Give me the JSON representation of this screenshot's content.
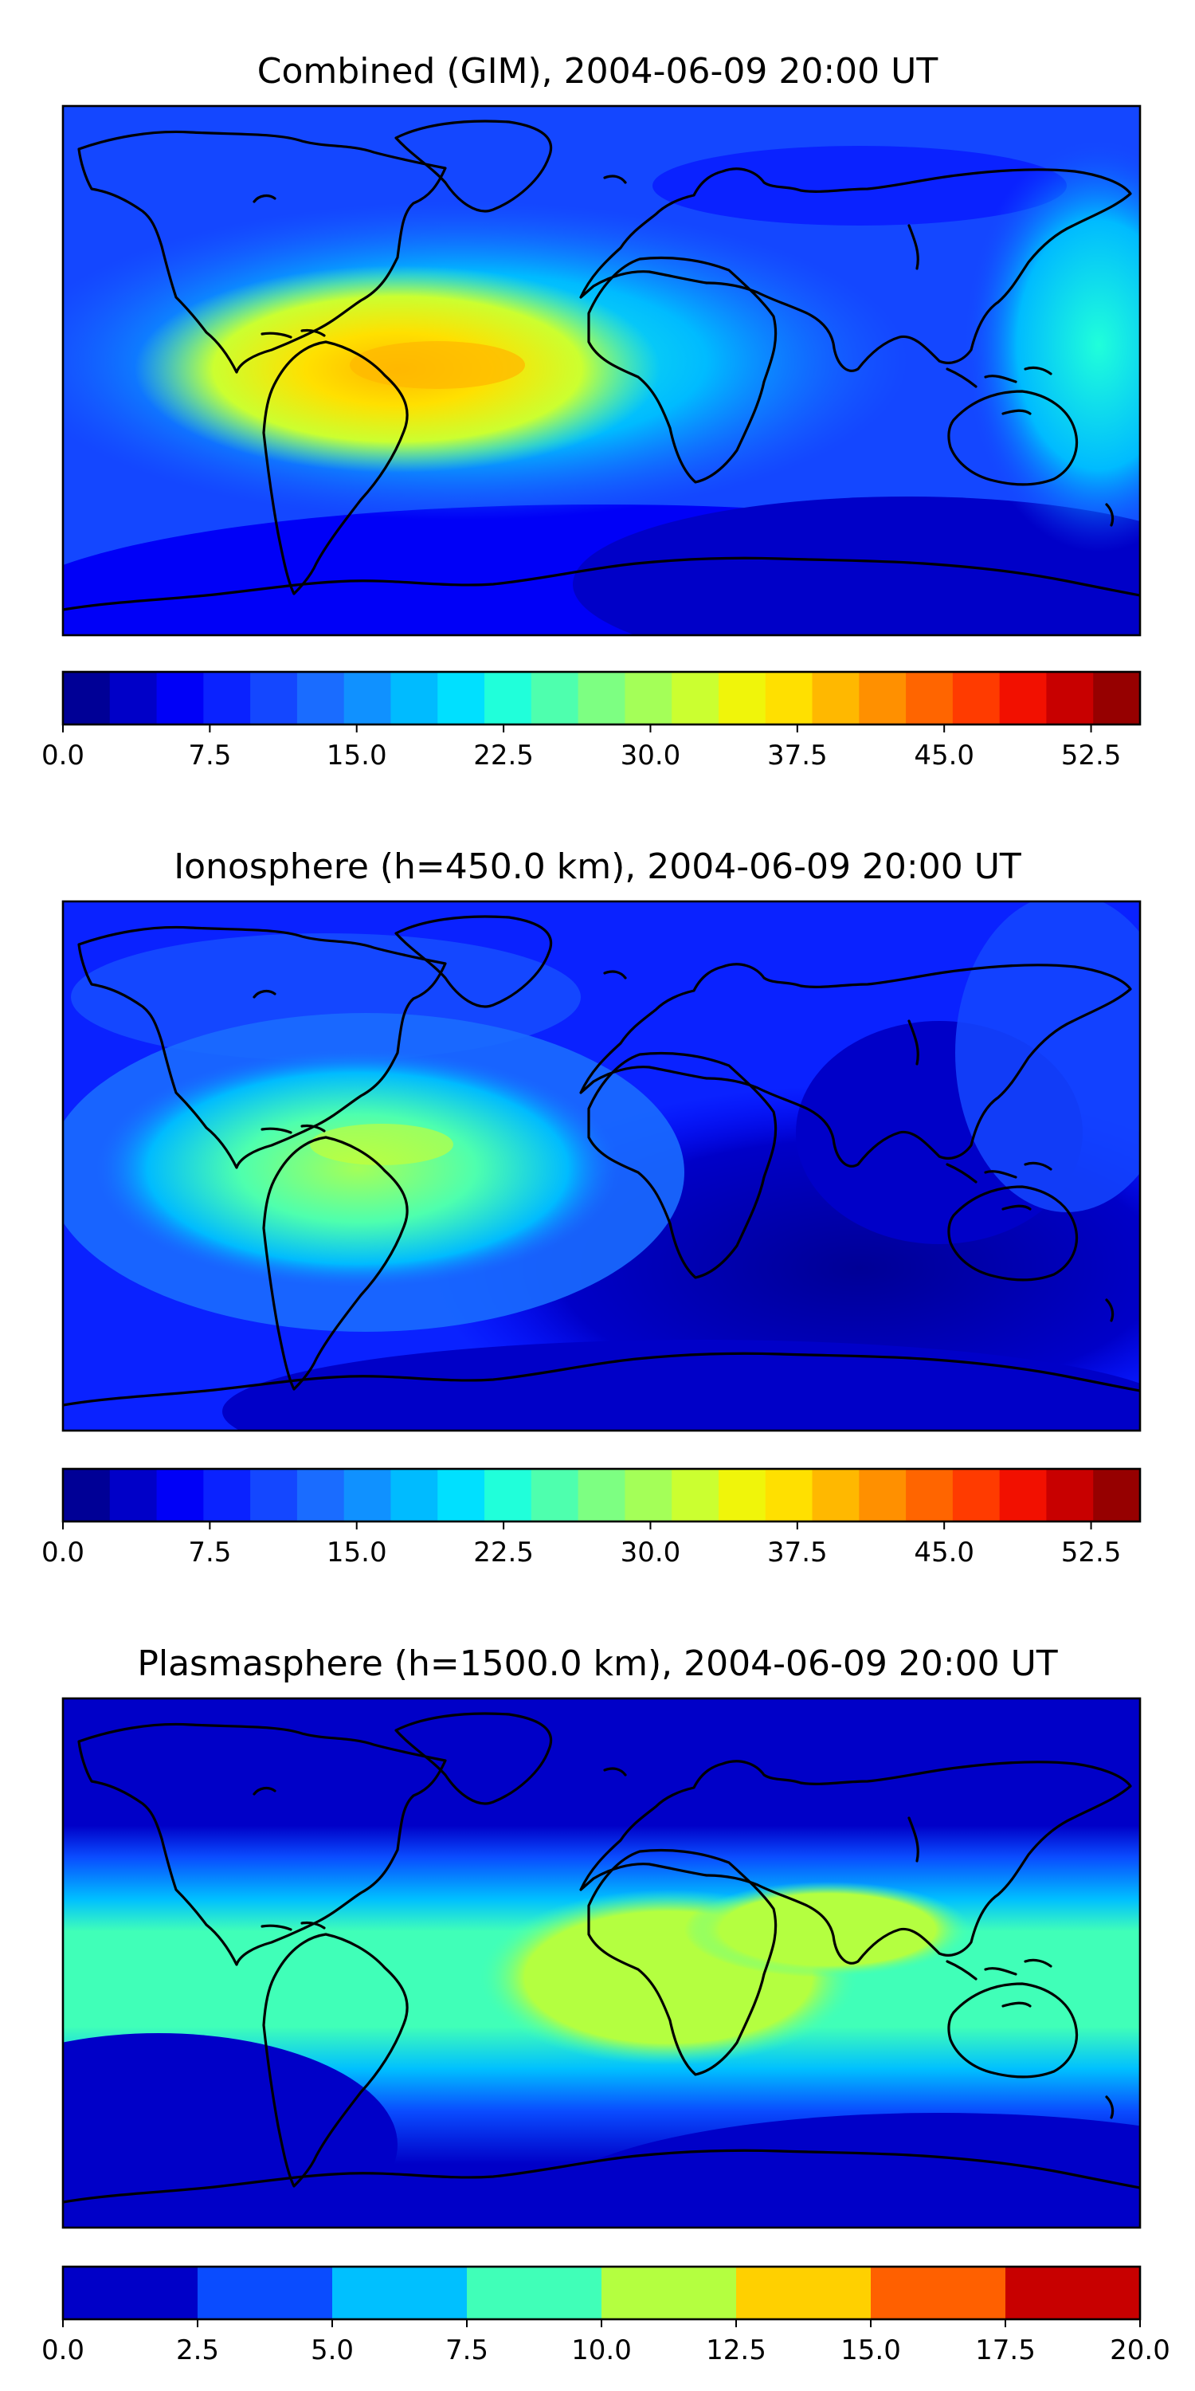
{
  "chart_data": [
    {
      "type": "heatmap",
      "title": "Combined (GIM), 2004-06-09 20:00 UT",
      "colorbar": {
        "range": [
          0,
          55
        ],
        "ticks": [
          "0.0",
          "7.5",
          "15.0",
          "22.5",
          "30.0",
          "37.5",
          "45.0",
          "52.5"
        ],
        "colors": [
          "#000096",
          "#0000c8",
          "#0000f7",
          "#0a22ff",
          "#1447ff",
          "#1a6cff",
          "#1091ff",
          "#00bbff",
          "#00e0ff",
          "#20ffda",
          "#4effae",
          "#7dff82",
          "#a4ff58",
          "#cbff30",
          "#f0f50a",
          "#ffe000",
          "#ffb800",
          "#ff9000",
          "#ff6500",
          "#ff3b00",
          "#f21000",
          "#c80000",
          "#960000"
        ]
      },
      "field_peak_region": "equatorial Atlantic / northern South America"
    },
    {
      "type": "heatmap",
      "title": "Ionosphere  (h=450.0 km), 2004-06-09 20:00 UT",
      "colorbar": {
        "range": [
          0,
          55
        ],
        "ticks": [
          "0.0",
          "7.5",
          "15.0",
          "22.5",
          "30.0",
          "37.5",
          "45.0",
          "52.5"
        ],
        "colors": [
          "#000096",
          "#0000c8",
          "#0000f7",
          "#0a22ff",
          "#1447ff",
          "#1a6cff",
          "#1091ff",
          "#00bbff",
          "#00e0ff",
          "#20ffda",
          "#4effae",
          "#7dff82",
          "#a4ff58",
          "#cbff30",
          "#f0f50a",
          "#ffe000",
          "#ffb800",
          "#ff9000",
          "#ff6500",
          "#ff3b00",
          "#f21000",
          "#c80000",
          "#960000"
        ]
      },
      "field_peak_region": "tropical Atlantic / South America"
    },
    {
      "type": "heatmap",
      "title": "Plasmasphere (h=1500.0 km), 2004-06-09 20:00 UT",
      "colorbar": {
        "range": [
          0,
          20
        ],
        "ticks": [
          "0.0",
          "2.5",
          "5.0",
          "7.5",
          "10.0",
          "12.5",
          "15.0",
          "17.5",
          "20.0"
        ],
        "colors": [
          "#0000c8",
          "#0a4cff",
          "#00c0ff",
          "#40ffb8",
          "#b4ff40",
          "#ffd000",
          "#ff6000",
          "#c80000"
        ]
      },
      "field_peak_region": "northern Africa / Arabia band"
    }
  ]
}
